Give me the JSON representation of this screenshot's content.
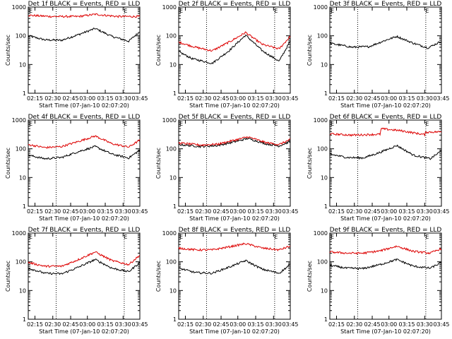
{
  "chart_data": [
    {
      "type": "line",
      "title": "Det 1f BLACK = Events, RED = LLD",
      "xlabel": "Start Time (07-Jan-10 02:07:20)",
      "ylabel": "Counts/sec",
      "ylim": [
        1,
        1000
      ],
      "y_scale": "log",
      "x_ticks": [
        "02:15",
        "02:30",
        "02:45",
        "03:00",
        "03:15",
        "03:30",
        "03:45"
      ],
      "y_ticks": [
        "1",
        "10",
        "100",
        "1000"
      ],
      "markers": [
        "E",
        "E"
      ],
      "series": [
        {
          "color": "#000000",
          "x": [
            0.0,
            0.15,
            0.3,
            0.45,
            0.6,
            0.75,
            0.9,
            1.0
          ],
          "values": [
            100,
            72,
            70,
            110,
            180,
            95,
            65,
            140
          ]
        },
        {
          "color": "#dd0000",
          "x": [
            0.0,
            0.2,
            0.45,
            0.6,
            0.8,
            1.0
          ],
          "values": [
            520,
            470,
            470,
            560,
            470,
            470
          ]
        }
      ]
    },
    {
      "type": "line",
      "title": "Det 2f BLACK = Events, RED = LLD",
      "xlabel": "Start Time (07-Jan-10 02:07:20)",
      "ylabel": "Counts/sec",
      "ylim": [
        1,
        1000
      ],
      "y_scale": "log",
      "x_ticks": [
        "02:15",
        "02:30",
        "02:45",
        "03:00",
        "03:15",
        "03:30",
        "03:45"
      ],
      "y_ticks": [
        "1",
        "10",
        "100",
        "1000"
      ],
      "markers": [
        "E",
        "E"
      ],
      "series": [
        {
          "color": "#000000",
          "x": [
            0.0,
            0.12,
            0.3,
            0.45,
            0.6,
            0.75,
            0.9,
            1.0
          ],
          "values": [
            28,
            16,
            11,
            30,
            105,
            30,
            13,
            65
          ]
        },
        {
          "color": "#dd0000",
          "x": [
            0.0,
            0.15,
            0.3,
            0.45,
            0.6,
            0.75,
            0.9,
            1.0
          ],
          "values": [
            60,
            40,
            30,
            60,
            130,
            50,
            35,
            95
          ]
        }
      ]
    },
    {
      "type": "line",
      "title": "Det 3f BLACK = Events, RED = LLD",
      "xlabel": "Start Time (07-Jan-10 02:07:20)",
      "ylabel": "Counts/sec",
      "ylim": [
        1,
        1000
      ],
      "y_scale": "log",
      "x_ticks": [
        "02:15",
        "02:30",
        "02:45",
        "03:00",
        "03:15",
        "03:30",
        "03:45"
      ],
      "y_ticks": [
        "1",
        "10",
        "100",
        "1000"
      ],
      "markers": [
        "E",
        "E"
      ],
      "series": [
        {
          "color": "#000000",
          "x": [
            0.0,
            0.2,
            0.35,
            0.5,
            0.6,
            0.75,
            0.88,
            1.0
          ],
          "values": [
            55,
            40,
            42,
            70,
            95,
            55,
            38,
            65
          ]
        }
      ]
    },
    {
      "type": "line",
      "title": "Det 4f BLACK = Events, RED = LLD",
      "xlabel": "Start Time (07-Jan-10 02:07:20)",
      "ylabel": "Counts/sec",
      "ylim": [
        1,
        1000
      ],
      "y_scale": "log",
      "x_ticks": [
        "02:15",
        "02:30",
        "02:45",
        "03:00",
        "03:15",
        "03:30",
        "03:45"
      ],
      "y_ticks": [
        "1",
        "10",
        "100",
        "1000"
      ],
      "markers": [
        "E",
        "E"
      ],
      "series": [
        {
          "color": "#000000",
          "x": [
            0.0,
            0.15,
            0.3,
            0.45,
            0.6,
            0.75,
            0.9,
            1.0
          ],
          "values": [
            60,
            45,
            50,
            80,
            120,
            65,
            48,
            90
          ]
        },
        {
          "color": "#dd0000",
          "x": [
            0.0,
            0.15,
            0.3,
            0.45,
            0.6,
            0.75,
            0.9,
            1.0
          ],
          "values": [
            140,
            110,
            120,
            180,
            280,
            150,
            115,
            200
          ]
        }
      ]
    },
    {
      "type": "line",
      "title": "Det 5f BLACK = Events, RED = LLD",
      "xlabel": "Start Time (07-Jan-10 02:07:20)",
      "ylabel": "Counts/sec",
      "ylim": [
        1,
        1000
      ],
      "y_scale": "log",
      "x_ticks": [
        "02:15",
        "02:30",
        "02:45",
        "03:00",
        "03:15",
        "03:30",
        "03:45"
      ],
      "y_ticks": [
        "1",
        "10",
        "100",
        "1000"
      ],
      "markers": [
        "E",
        "E"
      ],
      "series": [
        {
          "color": "#000000",
          "x": [
            0.0,
            0.2,
            0.35,
            0.5,
            0.62,
            0.78,
            0.9,
            1.0
          ],
          "values": [
            140,
            120,
            130,
            175,
            230,
            150,
            125,
            180
          ]
        },
        {
          "color": "#dd0000",
          "x": [
            0.0,
            0.2,
            0.35,
            0.5,
            0.62,
            0.78,
            0.9,
            1.0
          ],
          "values": [
            160,
            135,
            145,
            200,
            260,
            165,
            140,
            210
          ]
        }
      ]
    },
    {
      "type": "line",
      "title": "Det 6f BLACK = Events, RED = LLD",
      "xlabel": "Start Time (07-Jan-10 02:07:20)",
      "ylabel": "Counts/sec",
      "ylim": [
        1,
        1000
      ],
      "y_scale": "log",
      "x_ticks": [
        "02:15",
        "02:30",
        "02:45",
        "03:00",
        "03:15",
        "03:30",
        "03:45"
      ],
      "y_ticks": [
        "1",
        "10",
        "100",
        "1000"
      ],
      "markers": [
        "E",
        "E"
      ],
      "series": [
        {
          "color": "#000000",
          "x": [
            0.0,
            0.15,
            0.3,
            0.45,
            0.6,
            0.75,
            0.9,
            1.0
          ],
          "values": [
            65,
            50,
            48,
            75,
            130,
            60,
            45,
            85
          ]
        },
        {
          "color": "#dd0000",
          "x": [
            0.0,
            0.2,
            0.45,
            0.46,
            0.65,
            0.85,
            0.86,
            1.0
          ],
          "values": [
            330,
            300,
            320,
            500,
            420,
            310,
            380,
            390
          ]
        }
      ]
    },
    {
      "type": "line",
      "title": "Det 7f BLACK = Events, RED = LLD",
      "xlabel": "Start Time (07-Jan-10 02:07:20)",
      "ylabel": "Counts/sec",
      "ylim": [
        1,
        1000
      ],
      "y_scale": "log",
      "x_ticks": [
        "02:15",
        "02:30",
        "02:45",
        "03:00",
        "03:15",
        "03:30",
        "03:45"
      ],
      "y_ticks": [
        "1",
        "10",
        "100",
        "1000"
      ],
      "markers": [
        "E",
        "E"
      ],
      "series": [
        {
          "color": "#000000",
          "x": [
            0.0,
            0.15,
            0.3,
            0.45,
            0.6,
            0.75,
            0.9,
            1.0
          ],
          "values": [
            60,
            40,
            38,
            65,
            120,
            60,
            45,
            95
          ]
        },
        {
          "color": "#dd0000",
          "x": [
            0.0,
            0.15,
            0.3,
            0.45,
            0.6,
            0.75,
            0.9,
            1.0
          ],
          "values": [
            95,
            70,
            70,
            120,
            220,
            110,
            80,
            170
          ]
        }
      ]
    },
    {
      "type": "line",
      "title": "Det 8f BLACK = Events, RED = LLD",
      "xlabel": "Start Time (07-Jan-10 02:07:20)",
      "ylabel": "Counts/sec",
      "ylim": [
        1,
        1000
      ],
      "y_scale": "log",
      "x_ticks": [
        "02:15",
        "02:30",
        "02:45",
        "03:00",
        "03:15",
        "03:30",
        "03:45"
      ],
      "y_ticks": [
        "1",
        "10",
        "100",
        "1000"
      ],
      "markers": [
        "E",
        "E"
      ],
      "series": [
        {
          "color": "#000000",
          "x": [
            0.0,
            0.15,
            0.3,
            0.45,
            0.6,
            0.75,
            0.9,
            1.0
          ],
          "values": [
            60,
            42,
            40,
            65,
            110,
            55,
            40,
            80
          ]
        },
        {
          "color": "#dd0000",
          "x": [
            0.0,
            0.15,
            0.3,
            0.45,
            0.6,
            0.75,
            0.9,
            1.0
          ],
          "values": [
            300,
            260,
            260,
            330,
            430,
            300,
            260,
            350
          ]
        }
      ]
    },
    {
      "type": "line",
      "title": "Det 9f BLACK = Events, RED = LLD",
      "xlabel": "Start Time (07-Jan-10 02:07:20)",
      "ylabel": "Counts/sec",
      "ylim": [
        1,
        1000
      ],
      "y_scale": "log",
      "x_ticks": [
        "02:15",
        "02:30",
        "02:45",
        "03:00",
        "03:15",
        "03:30",
        "03:45"
      ],
      "y_ticks": [
        "1",
        "10",
        "100",
        "1000"
      ],
      "markers": [
        "E",
        "E"
      ],
      "series": [
        {
          "color": "#000000",
          "x": [
            0.0,
            0.15,
            0.3,
            0.45,
            0.6,
            0.75,
            0.9,
            1.0
          ],
          "values": [
            75,
            60,
            58,
            80,
            120,
            70,
            60,
            95
          ]
        },
        {
          "color": "#dd0000",
          "x": [
            0.0,
            0.15,
            0.3,
            0.45,
            0.6,
            0.75,
            0.9,
            1.0
          ],
          "values": [
            220,
            200,
            200,
            240,
            350,
            230,
            200,
            290
          ]
        }
      ]
    }
  ]
}
